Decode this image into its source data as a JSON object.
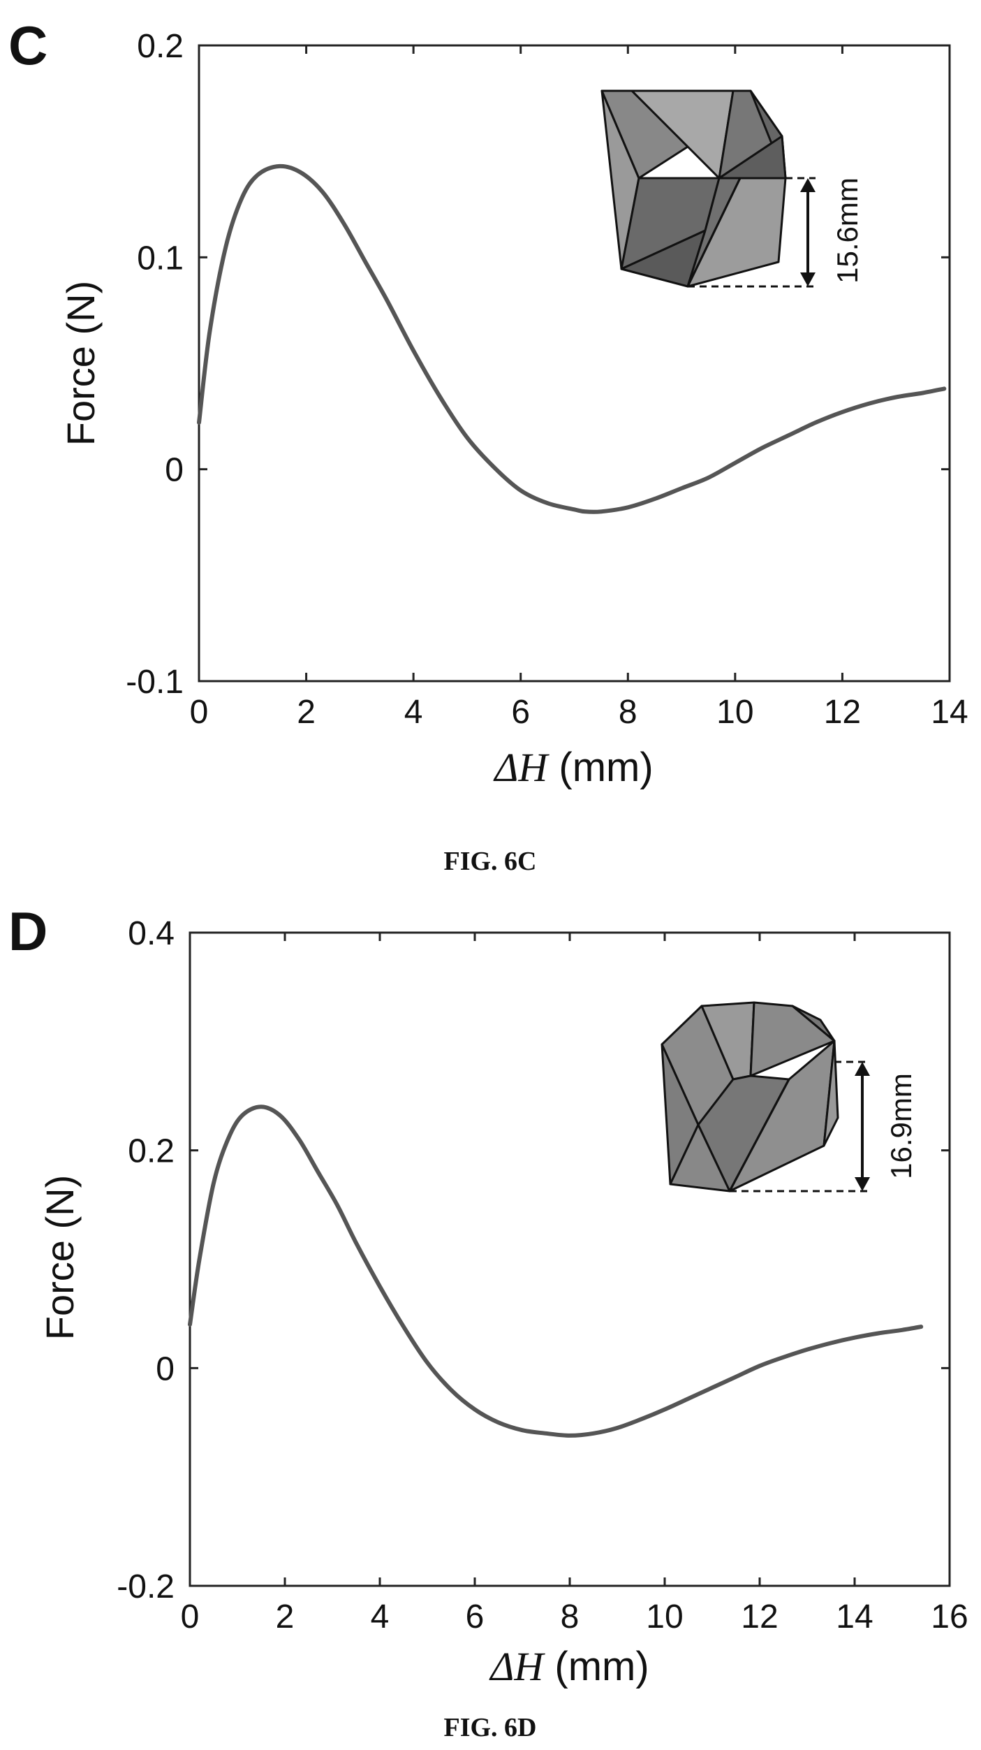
{
  "figures": [
    {
      "panel_letter": "C",
      "caption": "FIG. 6C",
      "dimension_label": "15.6mm"
    },
    {
      "panel_letter": "D",
      "caption": "FIG. 6D",
      "dimension_label": "16.9mm"
    }
  ],
  "colors": {
    "curve": "#555555",
    "axis": "#222222",
    "text": "#111111",
    "inset_dark": "#666666",
    "inset_light": "#9a9a9a"
  },
  "chart_data": [
    {
      "type": "line",
      "xlabel_var": "ΔH",
      "xlabel_unit": " (mm)",
      "ylabel": "Force (N)",
      "xlim": [
        0,
        14
      ],
      "ylim": [
        -0.1,
        0.2
      ],
      "xticks": [
        "0",
        "2",
        "4",
        "6",
        "8",
        "10",
        "12",
        "14"
      ],
      "yticks": [
        "-0.1",
        "0",
        "0.1",
        "0.2"
      ],
      "grid": false,
      "series": [
        {
          "x": [
            0,
            0.2,
            0.5,
            0.8,
            1.1,
            1.5,
            1.9,
            2.3,
            2.7,
            3.1,
            3.5,
            4,
            4.5,
            5,
            5.5,
            6,
            6.5,
            7,
            7.2,
            7.5,
            8,
            8.5,
            9,
            9.5,
            10,
            10.5,
            11,
            11.5,
            12,
            12.5,
            13,
            13.5,
            13.9
          ],
          "y": [
            0.022,
            0.065,
            0.105,
            0.128,
            0.139,
            0.143,
            0.14,
            0.131,
            0.116,
            0.098,
            0.08,
            0.056,
            0.034,
            0.015,
            0.001,
            -0.01,
            -0.016,
            -0.019,
            -0.02,
            -0.02,
            -0.018,
            -0.014,
            -0.009,
            -0.004,
            0.003,
            0.01,
            0.016,
            0.022,
            0.027,
            0.031,
            0.034,
            0.036,
            0.038
          ]
        }
      ]
    },
    {
      "type": "line",
      "xlabel_var": "ΔH",
      "xlabel_unit": " (mm)",
      "ylabel": "Force (N)",
      "xlim": [
        0,
        16
      ],
      "ylim": [
        -0.2,
        0.4
      ],
      "xticks": [
        "0",
        "2",
        "4",
        "6",
        "8",
        "10",
        "12",
        "14",
        "16"
      ],
      "yticks": [
        "-0.2",
        "0",
        "0.2",
        "0.4"
      ],
      "grid": false,
      "series": [
        {
          "x": [
            0,
            0.2,
            0.5,
            0.8,
            1.1,
            1.5,
            1.9,
            2.3,
            2.7,
            3.1,
            3.5,
            4,
            4.5,
            5,
            5.5,
            6,
            6.5,
            7,
            7.5,
            8,
            8.5,
            9,
            9.5,
            10,
            10.5,
            11,
            11.5,
            12,
            12.5,
            13,
            13.5,
            14,
            14.5,
            15,
            15.4
          ],
          "y": [
            0.04,
            0.1,
            0.17,
            0.21,
            0.232,
            0.24,
            0.232,
            0.21,
            0.18,
            0.15,
            0.115,
            0.075,
            0.038,
            0.005,
            -0.02,
            -0.038,
            -0.05,
            -0.057,
            -0.06,
            -0.062,
            -0.06,
            -0.055,
            -0.047,
            -0.038,
            -0.028,
            -0.018,
            -0.008,
            0.002,
            0.01,
            0.017,
            0.023,
            0.028,
            0.032,
            0.035,
            0.038
          ]
        }
      ]
    }
  ]
}
